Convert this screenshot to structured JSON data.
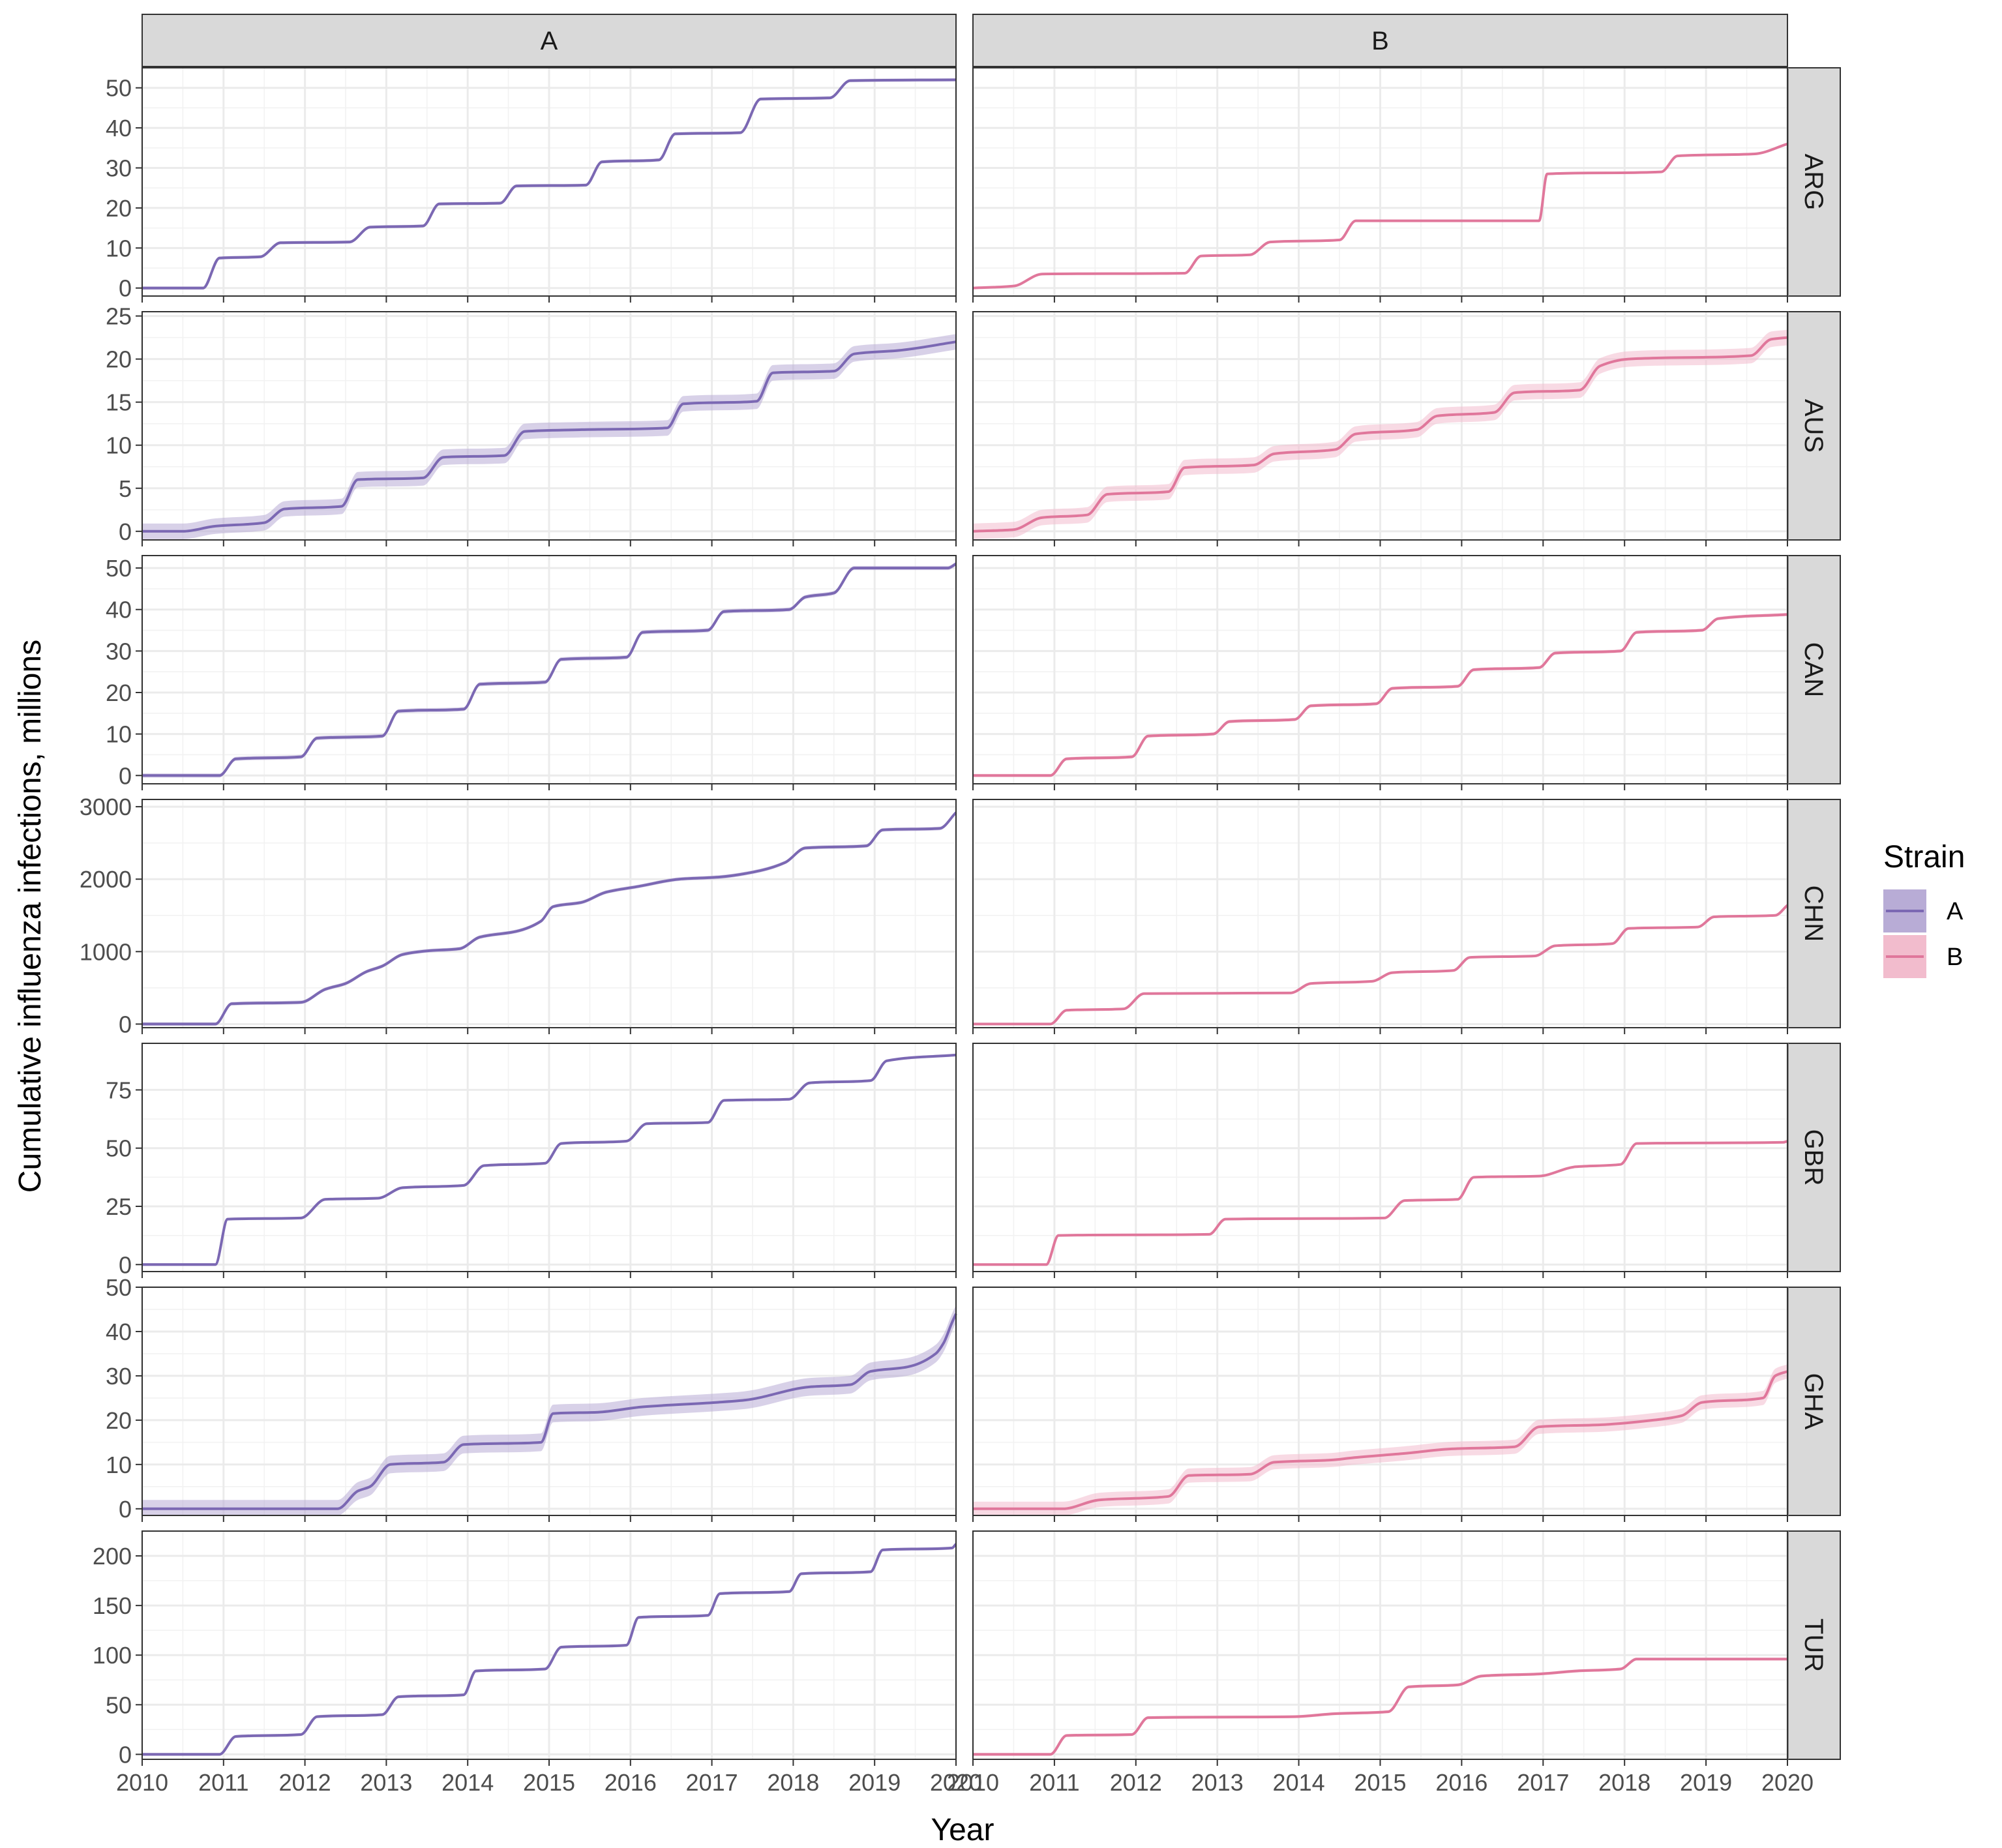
{
  "chart_data": {
    "type": "line",
    "xlabel": "Year",
    "ylabel": "Cumulative influenza infections, millions",
    "xlim": [
      2010,
      2020
    ],
    "x_ticks": [
      "2010",
      "2011",
      "2012",
      "2013",
      "2014",
      "2015",
      "2016",
      "2017",
      "2018",
      "2019",
      "2020"
    ],
    "facet_columns": [
      "A",
      "B"
    ],
    "legend": {
      "title": "Strain",
      "position": "right",
      "entries": [
        {
          "name": "A",
          "color": "#7b68b3",
          "ribbon_color": "#b8acd6"
        },
        {
          "name": "B",
          "color": "#e0779b",
          "ribbon_color": "#f2bccd"
        }
      ]
    },
    "grid": true,
    "uncertainty_ribbon": true,
    "rows": [
      {
        "name": "ARG",
        "ylim": [
          -2,
          55
        ],
        "y_ticks": [
          0,
          10,
          20,
          30,
          40,
          50
        ],
        "series": {
          "A": {
            "x": [
              2010,
              2010.75,
              2010.95,
              2011.45,
              2011.7,
              2012.55,
              2012.8,
              2013.45,
              2013.65,
              2014.4,
              2014.6,
              2015.45,
              2015.65,
              2016.35,
              2016.55,
              2017.35,
              2017.6,
              2018.45,
              2018.7,
              2020
            ],
            "y": [
              0,
              0,
              7.5,
              7.8,
              11.3,
              11.5,
              15.2,
              15.5,
              21,
              21.2,
              25.5,
              25.7,
              31.5,
              32,
              38.5,
              38.8,
              47.2,
              47.5,
              51.8,
              52
            ],
            "ribbon": 0.4
          },
          "B": {
            "x": [
              2010,
              2010.5,
              2010.85,
              2012.6,
              2012.8,
              2013.4,
              2013.65,
              2014.5,
              2014.7,
              2016.95,
              2017.05,
              2018.45,
              2018.65,
              2019.6,
              2020
            ],
            "y": [
              0,
              0.5,
              3.5,
              3.7,
              8,
              8.3,
              11.5,
              12,
              16.8,
              16.8,
              28.5,
              29,
              33,
              33.5,
              36
            ],
            "ribbon": 0.3
          }
        }
      },
      {
        "name": "AUS",
        "ylim": [
          -1,
          25.5
        ],
        "y_ticks": [
          0,
          5,
          10,
          15,
          20,
          25
        ],
        "series": {
          "A": {
            "x": [
              2010,
              2010.5,
              2010.9,
              2011.5,
              2011.75,
              2012.45,
              2012.65,
              2013.45,
              2013.7,
              2014.45,
              2014.7,
              2015.4,
              2016.45,
              2016.65,
              2017.55,
              2017.75,
              2018.5,
              2018.75,
              2019.3,
              2020
            ],
            "y": [
              0,
              0,
              0.6,
              1,
              2.6,
              2.9,
              6,
              6.2,
              8.6,
              8.8,
              11.6,
              11.8,
              12,
              14.8,
              15.1,
              18.4,
              18.6,
              20.6,
              21,
              22
            ],
            "ribbon": 0.9
          },
          "B": {
            "x": [
              2010,
              2010.5,
              2010.85,
              2011.4,
              2011.65,
              2012.4,
              2012.6,
              2013.45,
              2013.7,
              2014.45,
              2014.7,
              2015.45,
              2015.7,
              2016.4,
              2016.65,
              2017.45,
              2017.7,
              2018.05,
              2019.55,
              2019.8,
              2020
            ],
            "y": [
              0,
              0.2,
              1.6,
              1.9,
              4.3,
              4.6,
              7.4,
              7.7,
              9,
              9.5,
              11.3,
              11.8,
              13.4,
              13.8,
              16.1,
              16.4,
              19.2,
              20,
              20.4,
              22.3,
              22.5
            ],
            "ribbon": 0.9
          }
        }
      },
      {
        "name": "CAN",
        "ylim": [
          -2,
          53
        ],
        "y_ticks": [
          0,
          10,
          20,
          30,
          40,
          50
        ],
        "series": {
          "A": {
            "x": [
              2010,
              2010.95,
              2011.15,
              2011.95,
              2012.15,
              2012.95,
              2013.15,
              2013.95,
              2014.15,
              2014.95,
              2015.15,
              2015.95,
              2016.15,
              2016.95,
              2017.15,
              2017.95,
              2018.15,
              2018.5,
              2018.75,
              2019.9,
              2020
            ],
            "y": [
              0,
              0,
              4,
              4.5,
              9,
              9.5,
              15.5,
              16,
              22,
              22.5,
              28,
              28.5,
              34.5,
              35,
              39.5,
              40,
              43,
              44,
              50,
              50,
              51
            ],
            "ribbon": 0.5
          },
          "B": {
            "x": [
              2010,
              2010.95,
              2011.15,
              2011.95,
              2012.15,
              2012.95,
              2013.15,
              2013.95,
              2014.15,
              2014.95,
              2015.15,
              2015.95,
              2016.15,
              2016.95,
              2017.15,
              2017.95,
              2018.15,
              2018.95,
              2019.15,
              2020
            ],
            "y": [
              0,
              0,
              4,
              4.5,
              9.5,
              10,
              13,
              13.5,
              16.8,
              17.3,
              21,
              21.5,
              25.5,
              26,
              29.5,
              30,
              34.5,
              35,
              37.8,
              38.8
            ],
            "ribbon": 0.4
          }
        }
      },
      {
        "name": "CHN",
        "ylim": [
          -50,
          3100
        ],
        "y_ticks": [
          0,
          1000,
          2000,
          3000
        ],
        "series": {
          "A": {
            "x": [
              2010,
              2010.9,
              2011.1,
              2011.95,
              2012.25,
              2012.5,
              2012.75,
              2012.95,
              2013.2,
              2013.5,
              2013.9,
              2014.15,
              2014.6,
              2014.9,
              2015.05,
              2015.4,
              2015.7,
              2016.1,
              2016.6,
              2017.1,
              2017.6,
              2017.9,
              2018.15,
              2018.9,
              2019.1,
              2019.8,
              2020
            ],
            "y": [
              0,
              0,
              280,
              300,
              480,
              560,
              720,
              800,
              960,
              1010,
              1040,
              1200,
              1280,
              1420,
              1620,
              1680,
              1820,
              1900,
              2000,
              2030,
              2120,
              2230,
              2430,
              2460,
              2680,
              2700,
              2920
            ],
            "ribbon": 25
          },
          "B": {
            "x": [
              2010,
              2010.95,
              2011.15,
              2011.85,
              2012.1,
              2013.9,
              2014.15,
              2014.9,
              2015.15,
              2015.9,
              2016.1,
              2016.9,
              2017.15,
              2017.85,
              2018.05,
              2018.9,
              2019.1,
              2019.85,
              2020
            ],
            "y": [
              0,
              0,
              190,
              210,
              420,
              430,
              560,
              590,
              710,
              740,
              920,
              940,
              1080,
              1110,
              1320,
              1340,
              1480,
              1500,
              1640
            ],
            "ribbon": 15
          }
        }
      },
      {
        "name": "GBR",
        "ylim": [
          -3,
          95
        ],
        "y_ticks": [
          0,
          25,
          50,
          75
        ],
        "series": {
          "A": {
            "x": [
              2010,
              2010.9,
              2011.05,
              2011.95,
              2012.25,
              2012.9,
              2013.2,
              2013.95,
              2014.2,
              2014.95,
              2015.15,
              2015.95,
              2016.2,
              2016.95,
              2017.15,
              2017.95,
              2018.2,
              2018.95,
              2019.15,
              2020
            ],
            "y": [
              0,
              0,
              19.5,
              20,
              28,
              28.5,
              33,
              34,
              42.5,
              43.5,
              52,
              53,
              60.5,
              61,
              70.5,
              71,
              78,
              79,
              87.5,
              90
            ],
            "ribbon": 0.6
          },
          "B": {
            "x": [
              2010,
              2010.9,
              2011.05,
              2012.9,
              2013.1,
              2015.05,
              2015.3,
              2015.95,
              2016.15,
              2016.95,
              2017.4,
              2017.95,
              2018.15,
              2019.95,
              2020
            ],
            "y": [
              0,
              0,
              12.5,
              13,
              19.5,
              20,
              27.5,
              28,
              37.5,
              38,
              42,
              43,
              52,
              52.5,
              53
            ],
            "ribbon": 0.5
          }
        }
      },
      {
        "name": "GHA",
        "ylim": [
          -1.5,
          50
        ],
        "y_ticks": [
          0,
          10,
          20,
          30,
          40,
          50
        ],
        "series": {
          "A": {
            "x": [
              2010,
              2012.4,
              2012.65,
              2012.8,
              2013.05,
              2013.7,
              2013.95,
              2014.9,
              2015.05,
              2015.6,
              2016.15,
              2017.05,
              2017.4,
              2018.2,
              2018.7,
              2018.95,
              2019.4,
              2019.75,
              2019.85,
              2019.95,
              2020
            ],
            "y": [
              0,
              0,
              4,
              5,
              10,
              10.5,
              14.5,
              15,
              21.5,
              21.8,
              23,
              24,
              24.5,
              27.5,
              28,
              31,
              32,
              35,
              37.5,
              42,
              44
            ],
            "ribbon": 2
          },
          "B": {
            "x": [
              2010,
              2011.1,
              2011.55,
              2012.4,
              2012.65,
              2013.4,
              2013.7,
              2014.4,
              2014.65,
              2015.3,
              2015.85,
              2016.65,
              2016.95,
              2017.75,
              2018.35,
              2018.7,
              2018.95,
              2019.7,
              2019.85,
              2020
            ],
            "y": [
              0,
              0,
              2,
              2.8,
              7.5,
              7.8,
              10.5,
              11,
              11.5,
              12.5,
              13.5,
              14,
              18.5,
              19,
              20,
              21,
              24,
              25,
              30,
              31
            ],
            "ribbon": 1.6
          }
        }
      },
      {
        "name": "TUR",
        "ylim": [
          -5,
          225
        ],
        "y_ticks": [
          0,
          50,
          100,
          150,
          200
        ],
        "series": {
          "A": {
            "x": [
              2010,
              2010.95,
              2011.15,
              2011.95,
              2012.15,
              2012.95,
              2013.15,
              2013.95,
              2014.1,
              2014.95,
              2015.15,
              2015.95,
              2016.1,
              2016.95,
              2017.1,
              2017.95,
              2018.1,
              2018.95,
              2019.1,
              2019.95,
              2020
            ],
            "y": [
              0,
              0,
              18,
              20,
              38,
              40,
              58,
              60,
              84,
              86,
              108,
              110,
              138,
              140,
              162,
              164,
              182,
              184,
              206,
              208,
              212
            ],
            "ribbon": 1.5
          },
          "B": {
            "x": [
              2010,
              2010.95,
              2011.15,
              2011.95,
              2012.15,
              2013.95,
              2014.45,
              2015.1,
              2015.35,
              2015.95,
              2016.25,
              2016.95,
              2017.4,
              2017.95,
              2018.15,
              2020
            ],
            "y": [
              0,
              0,
              19,
              20,
              37,
              38,
              41,
              43,
              68,
              70,
              79,
              81,
              84,
              86,
              96,
              96
            ],
            "ribbon": 1.5
          }
        }
      }
    ]
  }
}
